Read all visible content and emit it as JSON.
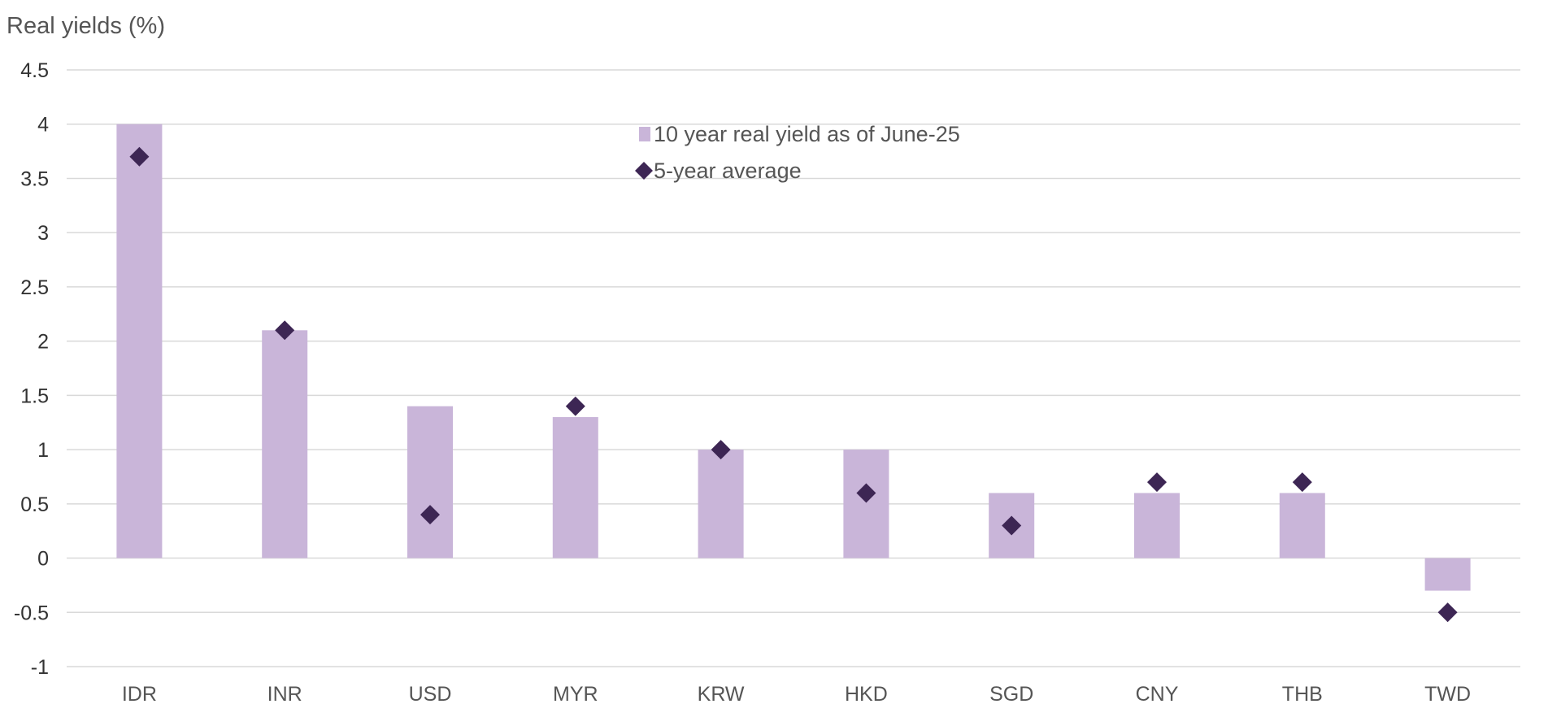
{
  "chart_data": {
    "type": "bar",
    "title": "",
    "ylabel": "Real yields (%)",
    "xlabel": "",
    "ylim": [
      -1,
      4.5
    ],
    "yticks": [
      "4.5",
      "4",
      "3.5",
      "3",
      "2.5",
      "2",
      "1.5",
      "1",
      "0.5",
      "0",
      "-0.5",
      "-1"
    ],
    "ytick_values": [
      4.5,
      4,
      3.5,
      3,
      2.5,
      2,
      1.5,
      1,
      0.5,
      0,
      -0.5,
      -1
    ],
    "grid": true,
    "legend_position": "top-center",
    "categories": [
      "IDR",
      "INR",
      "USD",
      "MYR",
      "KRW",
      "HKD",
      "SGD",
      "CNY",
      "THB",
      "TWD"
    ],
    "series": [
      {
        "name": "10 year real yield as of June-25",
        "kind": "bar",
        "color": "#c9b5d9",
        "values": [
          4.0,
          2.1,
          1.4,
          1.3,
          1.0,
          1.0,
          0.6,
          0.6,
          0.6,
          -0.3
        ]
      },
      {
        "name": "5-year average",
        "kind": "diamond",
        "color": "#3d2654",
        "values": [
          3.7,
          2.1,
          0.4,
          1.4,
          1.0,
          0.6,
          0.3,
          0.7,
          0.7,
          -0.5
        ]
      }
    ]
  }
}
